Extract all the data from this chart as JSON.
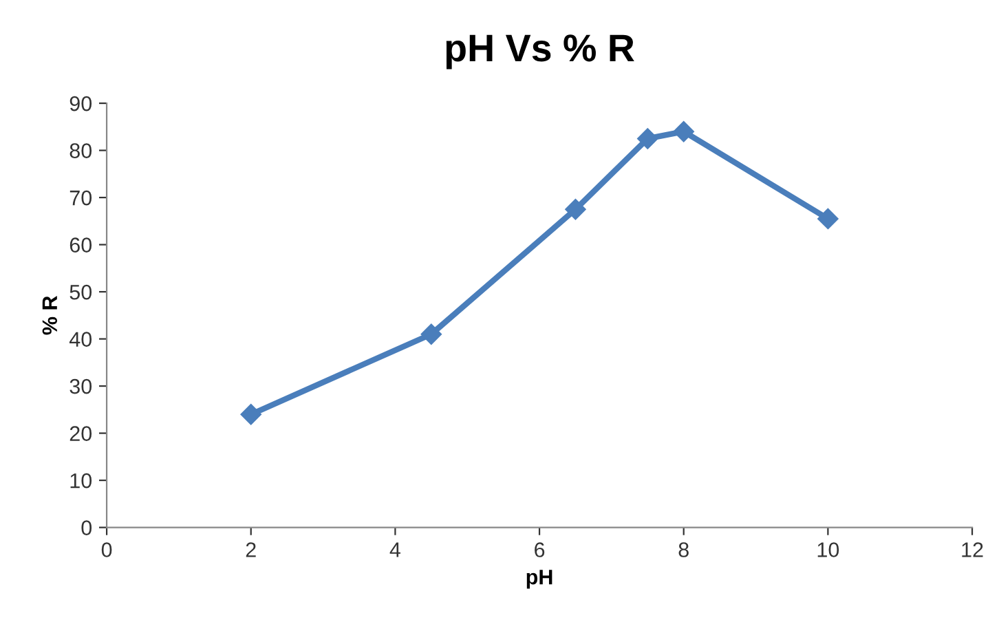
{
  "chart_data": {
    "type": "line",
    "title": "pH Vs % R",
    "xlabel": "pH",
    "ylabel": "% R",
    "x": [
      2,
      4.5,
      6.5,
      7.5,
      8,
      10
    ],
    "series": [
      {
        "color": "#4a7ebb",
        "values": [
          24,
          41,
          67.5,
          82.5,
          84,
          65.5
        ]
      }
    ],
    "xlim": [
      0,
      12
    ],
    "xticks": [
      0,
      2,
      4,
      6,
      8,
      10,
      12
    ],
    "ylim": [
      0,
      90
    ],
    "yticks": [
      0,
      10,
      20,
      30,
      40,
      50,
      60,
      70,
      80,
      90
    ],
    "grid": false,
    "marker": "diamond",
    "line_style": "solid"
  }
}
